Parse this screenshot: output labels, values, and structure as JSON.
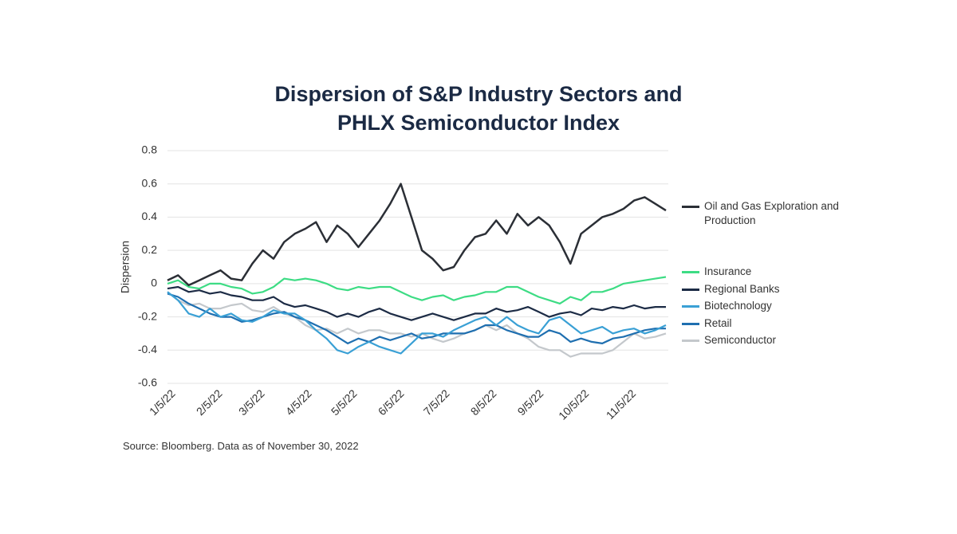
{
  "chart_data": {
    "type": "line",
    "title": "Dispersion of S&P Industry Sectors and PHLX Semiconductor Index",
    "y_label": "Dispersion",
    "source": "Source: Bloomberg. Data as of November 30, 2022",
    "x": [
      "1/5/22",
      "1/12/22",
      "1/19/22",
      "1/26/22",
      "2/2/22",
      "2/9/22",
      "2/16/22",
      "2/23/22",
      "3/2/22",
      "3/9/22",
      "3/16/22",
      "3/23/22",
      "3/30/22",
      "4/6/22",
      "4/13/22",
      "4/20/22",
      "4/27/22",
      "5/4/22",
      "5/11/22",
      "5/18/22",
      "5/25/22",
      "6/1/22",
      "6/8/22",
      "6/15/22",
      "6/22/22",
      "6/29/22",
      "7/6/22",
      "7/13/22",
      "7/20/22",
      "7/27/22",
      "8/3/22",
      "8/10/22",
      "8/17/22",
      "8/24/22",
      "8/31/22",
      "9/7/22",
      "9/14/22",
      "9/21/22",
      "9/28/22",
      "10/5/22",
      "10/12/22",
      "10/19/22",
      "10/26/22",
      "11/2/22",
      "11/9/22",
      "11/16/22",
      "11/23/22",
      "11/30/22"
    ],
    "xlim": [
      "1/5/22",
      "11/30/22"
    ],
    "xticks": [
      "1/5/22",
      "2/5/22",
      "3/5/22",
      "4/5/22",
      "5/5/22",
      "6/5/22",
      "7/5/22",
      "8/5/22",
      "9/5/22",
      "10/5/22",
      "11/5/22"
    ],
    "ylim": [
      -0.6,
      0.8
    ],
    "yticks": [
      {
        "value": -0.6,
        "label": "-0.6"
      },
      {
        "value": -0.4,
        "label": "-0.4"
      },
      {
        "value": -0.2,
        "label": "-0.2"
      },
      0,
      0.2,
      0.4,
      0.6,
      0.8
    ],
    "grid": true,
    "legend": "right",
    "series": [
      {
        "name": "Oil and Gas Exploration and Production",
        "color": "#2b2f36",
        "values": [
          0.02,
          0.05,
          -0.01,
          0.02,
          0.05,
          0.08,
          0.03,
          0.02,
          0.12,
          0.2,
          0.15,
          0.25,
          0.3,
          0.33,
          0.37,
          0.25,
          0.35,
          0.3,
          0.22,
          0.3,
          0.38,
          0.48,
          0.6,
          0.4,
          0.2,
          0.15,
          0.08,
          0.1,
          0.2,
          0.28,
          0.3,
          0.38,
          0.3,
          0.42,
          0.35,
          0.4,
          0.35,
          0.25,
          0.12,
          0.3,
          0.35,
          0.4,
          0.42,
          0.45,
          0.5,
          0.52,
          0.48,
          0.44
        ]
      },
      {
        "name": "Insurance",
        "color": "#3ddc84",
        "values": [
          0,
          0.02,
          -0.02,
          -0.03,
          0,
          0,
          -0.02,
          -0.03,
          -0.06,
          -0.05,
          -0.02,
          0.03,
          0.02,
          0.03,
          0.02,
          0,
          -0.03,
          -0.04,
          -0.02,
          -0.03,
          -0.02,
          -0.02,
          -0.05,
          -0.08,
          -0.1,
          -0.08,
          -0.07,
          -0.1,
          -0.08,
          -0.07,
          -0.05,
          -0.05,
          -0.02,
          -0.02,
          -0.05,
          -0.08,
          -0.1,
          -0.12,
          -0.08,
          -0.1,
          -0.05,
          -0.05,
          -0.03,
          0,
          0.01,
          0.02,
          0.03,
          0.04
        ]
      },
      {
        "name": "Regional Banks",
        "color": "#1c2b45",
        "values": [
          -0.03,
          -0.02,
          -0.05,
          -0.04,
          -0.06,
          -0.05,
          -0.07,
          -0.08,
          -0.1,
          -0.1,
          -0.08,
          -0.12,
          -0.14,
          -0.13,
          -0.15,
          -0.17,
          -0.2,
          -0.18,
          -0.2,
          -0.17,
          -0.15,
          -0.18,
          -0.2,
          -0.22,
          -0.2,
          -0.18,
          -0.2,
          -0.22,
          -0.2,
          -0.18,
          -0.18,
          -0.15,
          -0.17,
          -0.16,
          -0.14,
          -0.17,
          -0.2,
          -0.18,
          -0.17,
          -0.19,
          -0.15,
          -0.16,
          -0.14,
          -0.15,
          -0.13,
          -0.15,
          -0.14,
          -0.14
        ]
      },
      {
        "name": "Biotechnology",
        "color": "#3aa0d5",
        "values": [
          -0.05,
          -0.1,
          -0.18,
          -0.2,
          -0.15,
          -0.2,
          -0.18,
          -0.22,
          -0.23,
          -0.2,
          -0.16,
          -0.18,
          -0.18,
          -0.22,
          -0.28,
          -0.33,
          -0.4,
          -0.42,
          -0.38,
          -0.35,
          -0.38,
          -0.4,
          -0.42,
          -0.36,
          -0.3,
          -0.3,
          -0.32,
          -0.28,
          -0.25,
          -0.22,
          -0.2,
          -0.25,
          -0.2,
          -0.25,
          -0.28,
          -0.3,
          -0.22,
          -0.2,
          -0.25,
          -0.3,
          -0.28,
          -0.26,
          -0.3,
          -0.28,
          -0.27,
          -0.3,
          -0.28,
          -0.25
        ]
      },
      {
        "name": "Retail",
        "color": "#1f6fb0",
        "values": [
          -0.06,
          -0.08,
          -0.12,
          -0.15,
          -0.18,
          -0.2,
          -0.2,
          -0.23,
          -0.22,
          -0.2,
          -0.18,
          -0.17,
          -0.2,
          -0.22,
          -0.25,
          -0.28,
          -0.32,
          -0.36,
          -0.33,
          -0.35,
          -0.32,
          -0.34,
          -0.32,
          -0.3,
          -0.33,
          -0.32,
          -0.3,
          -0.3,
          -0.3,
          -0.28,
          -0.25,
          -0.25,
          -0.28,
          -0.3,
          -0.32,
          -0.32,
          -0.28,
          -0.3,
          -0.35,
          -0.33,
          -0.35,
          -0.36,
          -0.33,
          -0.32,
          -0.3,
          -0.28,
          -0.27,
          -0.27
        ]
      },
      {
        "name": "Semiconductor",
        "color": "#c4c8cc",
        "values": [
          -0.05,
          -0.1,
          -0.13,
          -0.12,
          -0.15,
          -0.15,
          -0.13,
          -0.12,
          -0.16,
          -0.17,
          -0.14,
          -0.18,
          -0.2,
          -0.25,
          -0.28,
          -0.27,
          -0.3,
          -0.27,
          -0.3,
          -0.28,
          -0.28,
          -0.3,
          -0.3,
          -0.32,
          -0.3,
          -0.33,
          -0.35,
          -0.33,
          -0.3,
          -0.28,
          -0.25,
          -0.28,
          -0.25,
          -0.3,
          -0.33,
          -0.38,
          -0.4,
          -0.4,
          -0.44,
          -0.42,
          -0.42,
          -0.42,
          -0.4,
          -0.35,
          -0.3,
          -0.33,
          -0.32,
          -0.3
        ]
      }
    ]
  }
}
